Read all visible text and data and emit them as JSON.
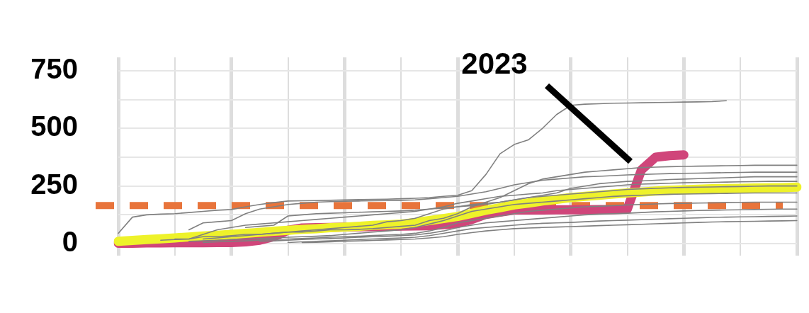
{
  "chart_data": {
    "type": "line",
    "categories": [
      null,
      null,
      null,
      null,
      null,
      null,
      null,
      null,
      null,
      null,
      null,
      null,
      null,
      null,
      null,
      null,
      null,
      null,
      null,
      null,
      null,
      null,
      null,
      null,
      null,
      null,
      null,
      null,
      null,
      null,
      null,
      null,
      null,
      null,
      null,
      null,
      null,
      null,
      null,
      null,
      null,
      null,
      null,
      null,
      null,
      null,
      null,
      null,
      null
    ],
    "ylim": [
      -52,
      808
    ],
    "yticks": [
      0,
      {
        "value": 125,
        "label": null
      },
      250,
      {
        "value": 375,
        "label": null
      },
      500,
      {
        "value": 625,
        "label": null
      },
      750
    ],
    "grid": true,
    "tick_labels": "y",
    "legend": false,
    "marker": "none",
    "line_style": "solid",
    "ref_lines": [
      {
        "axis": "y",
        "value": 165,
        "color": "#e8743b",
        "line_style": "dashed"
      }
    ],
    "annotations": [
      "2023"
    ],
    "series": [
      {
        "color": "#808080",
        "values": [
          45,
          115,
          125,
          128,
          130,
          135,
          140,
          145,
          148,
          160,
          170,
          178,
          185,
          186,
          187,
          188,
          190,
          191,
          192,
          193,
          195,
          197,
          200,
          205,
          210,
          230,
          300,
          390,
          430,
          450,
          500,
          560,
          600,
          605,
          607,
          609,
          610,
          611,
          612,
          613,
          614,
          615,
          616,
          620,
          null,
          null,
          null,
          null,
          null
        ]
      },
      {
        "color": "#808080",
        "values": [
          null,
          null,
          null,
          null,
          20,
          20,
          30,
          30,
          35,
          40,
          40,
          45,
          50,
          50,
          55,
          60,
          60,
          62,
          65,
          70,
          75,
          80,
          100,
          110,
          130,
          160,
          180,
          200,
          230,
          260,
          280,
          290,
          300,
          310,
          315,
          320,
          325,
          330,
          332,
          334,
          335,
          336,
          337,
          338,
          339,
          340,
          340,
          340,
          340
        ]
      },
      {
        "color": "#808080",
        "values": [
          null,
          null,
          null,
          null,
          null,
          60,
          90,
          95,
          100,
          130,
          150,
          160,
          170,
          175,
          180,
          182,
          184,
          185,
          186,
          187,
          188,
          190,
          195,
          200,
          205,
          215,
          225,
          240,
          255,
          265,
          275,
          280,
          285,
          290,
          292,
          295,
          298,
          300,
          302,
          304,
          305,
          306,
          307,
          308,
          309,
          310,
          310,
          310,
          310
        ]
      },
      {
        "color": "#808080",
        "values": [
          null,
          null,
          null,
          null,
          null,
          null,
          20,
          25,
          30,
          35,
          40,
          45,
          50,
          55,
          60,
          65,
          70,
          75,
          80,
          95,
          100,
          110,
          130,
          150,
          160,
          170,
          175,
          180,
          190,
          200,
          210,
          220,
          240,
          250,
          260,
          265,
          270,
          272,
          275,
          278,
          280,
          282,
          284,
          286,
          288,
          290,
          290,
          290,
          290
        ]
      },
      {
        "color": "#808080",
        "values": [
          null,
          null,
          null,
          15,
          18,
          20,
          40,
          60,
          70,
          80,
          85,
          90,
          95,
          100,
          105,
          110,
          115,
          120,
          125,
          130,
          135,
          140,
          150,
          160,
          175,
          185,
          195,
          205,
          210,
          215,
          220,
          230,
          235,
          240,
          245,
          250,
          255,
          258,
          260,
          262,
          264,
          265,
          266,
          267,
          268,
          269,
          270,
          270,
          270
        ]
      },
      {
        "color": "#808080",
        "values": [
          null,
          null,
          null,
          null,
          null,
          null,
          null,
          null,
          null,
          70,
          75,
          80,
          120,
          125,
          130,
          132,
          134,
          136,
          138,
          140,
          142,
          145,
          150,
          155,
          160,
          165,
          170,
          180,
          190,
          200,
          205,
          210,
          215,
          220,
          225,
          230,
          235,
          238,
          240,
          242,
          244,
          245,
          246,
          247,
          248,
          249,
          250,
          250,
          250
        ]
      },
      {
        "color": "#808080",
        "values": [
          null,
          null,
          null,
          null,
          null,
          10,
          12,
          15,
          18,
          20,
          22,
          25,
          28,
          30,
          32,
          35,
          40,
          45,
          50,
          55,
          60,
          70,
          85,
          100,
          120,
          140,
          150,
          160,
          170,
          175,
          180,
          185,
          190,
          195,
          200,
          205,
          208,
          210,
          212,
          214,
          215,
          216,
          217,
          218,
          219,
          220,
          220,
          220,
          220
        ]
      },
      {
        "color": "#808080",
        "values": [
          null,
          null,
          null,
          null,
          null,
          null,
          5,
          8,
          10,
          12,
          15,
          18,
          20,
          22,
          25,
          28,
          30,
          32,
          35,
          38,
          40,
          45,
          55,
          70,
          90,
          100,
          110,
          120,
          130,
          140,
          145,
          150,
          155,
          160,
          162,
          165,
          168,
          170,
          172,
          174,
          175,
          176,
          177,
          178,
          179,
          180,
          180,
          180,
          180
        ]
      },
      {
        "color": "#808080",
        "values": [
          null,
          null,
          null,
          null,
          null,
          null,
          null,
          null,
          null,
          null,
          10,
          12,
          15,
          18,
          20,
          22,
          25,
          28,
          30,
          32,
          35,
          38,
          45,
          55,
          70,
          80,
          90,
          95,
          100,
          105,
          110,
          115,
          120,
          125,
          128,
          130,
          132,
          135,
          138,
          140,
          142,
          144,
          145,
          146,
          147,
          148,
          149,
          150,
          150
        ]
      },
      {
        "color": "#808080",
        "values": [
          null,
          null,
          null,
          null,
          null,
          null,
          null,
          null,
          null,
          null,
          null,
          null,
          5,
          8,
          10,
          12,
          15,
          18,
          20,
          22,
          25,
          28,
          35,
          45,
          55,
          65,
          70,
          75,
          80,
          85,
          88,
          90,
          92,
          95,
          98,
          100,
          102,
          104,
          106,
          108,
          110,
          112,
          114,
          115,
          116,
          117,
          118,
          119,
          120
        ]
      },
      {
        "color": "#808080",
        "values": [
          null,
          null,
          null,
          null,
          null,
          null,
          null,
          null,
          null,
          null,
          null,
          null,
          null,
          5,
          6,
          8,
          10,
          12,
          14,
          16,
          18,
          20,
          25,
          30,
          40,
          48,
          55,
          60,
          65,
          68,
          70,
          72,
          74,
          76,
          78,
          80,
          82,
          84,
          86,
          88,
          90,
          92,
          94,
          95,
          96,
          97,
          98,
          99,
          100
        ]
      },
      {
        "color": "#eef22a",
        "values": [
          10,
          14,
          18,
          21,
          25,
          29,
          33,
          36,
          40,
          45,
          49,
          54,
          58,
          62,
          65,
          69,
          72,
          75,
          79,
          82,
          85,
          92,
          100,
          109,
          118,
          131,
          145,
          156,
          168,
          176,
          185,
          192,
          200,
          205,
          210,
          215,
          220,
          224,
          228,
          231,
          234,
          236,
          238,
          239,
          240,
          241,
          242,
          243,
          245
        ]
      },
      {
        "color": "#d0457a",
        "values": [
          2,
          2,
          3,
          3,
          4,
          4,
          4,
          5,
          5,
          8,
          15,
          30,
          58,
          68,
          69,
          70,
          72,
          73,
          74,
          75,
          76,
          77,
          78,
          82,
          88,
          105,
          127,
          137,
          146,
          146,
          146,
          147,
          147,
          147,
          148,
          148,
          150,
          320,
          375,
          382,
          385,
          null,
          null,
          null,
          null,
          null,
          null,
          null,
          null
        ]
      }
    ]
  }
}
